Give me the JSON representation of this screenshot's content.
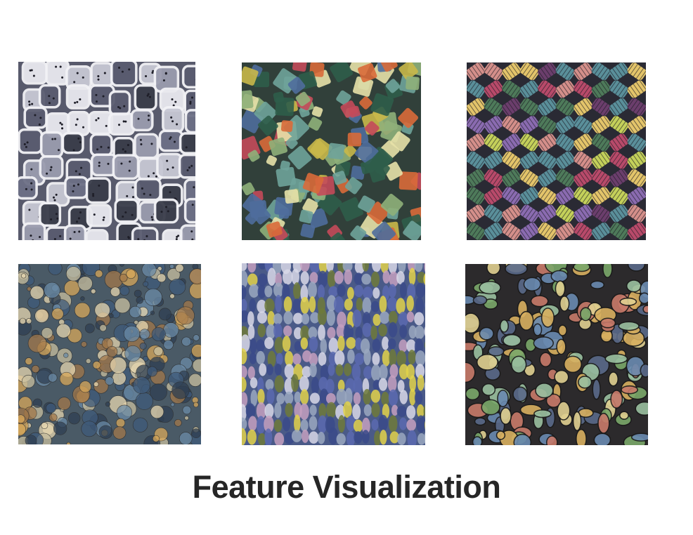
{
  "title": "Feature Visualization",
  "tiles": [
    {
      "id": "t1",
      "palette": [
        "#3a3d4a",
        "#6d7086",
        "#9a9cae",
        "#c7c8d4",
        "#e9e9ef",
        "#5a5c70"
      ],
      "bg": "#585a6c",
      "style": "cells"
    },
    {
      "id": "t2",
      "palette": [
        "#2f5d4a",
        "#c9b84a",
        "#d96a3a",
        "#e7e1a8",
        "#4f6d9c",
        "#8fb07a",
        "#c44a5a",
        "#6fa39a"
      ],
      "bg": "#31403a",
      "style": "blocks"
    },
    {
      "id": "t3",
      "palette": [
        "#6b3e6c",
        "#c4d05a",
        "#5a8f9a",
        "#d48f8a",
        "#8a6bb0",
        "#e3c46a",
        "#4e7a5a",
        "#b84a6a"
      ],
      "bg": "#2a2a34",
      "style": "weave"
    },
    {
      "id": "t4",
      "palette": [
        "#3f5a7a",
        "#d8a85a",
        "#e7d7b0",
        "#6a8aa6",
        "#a2784a",
        "#c9c0a0",
        "#2f3f52"
      ],
      "bg": "#4a5a66",
      "style": "bubbles"
    },
    {
      "id": "t5",
      "palette": [
        "#3a4a8a",
        "#e2d24a",
        "#d8d8e8",
        "#5a6ab0",
        "#9aa8c0",
        "#6e7a3a",
        "#c4a0c0"
      ],
      "bg": "#4a5a88",
      "style": "streaks"
    },
    {
      "id": "t6",
      "palette": [
        "#7aa86a",
        "#d8b060",
        "#6a8ab0",
        "#c87a6a",
        "#9ac0a0",
        "#e0d090",
        "#5a6a8a"
      ],
      "bg": "#2c2a2c",
      "style": "blobs"
    }
  ]
}
